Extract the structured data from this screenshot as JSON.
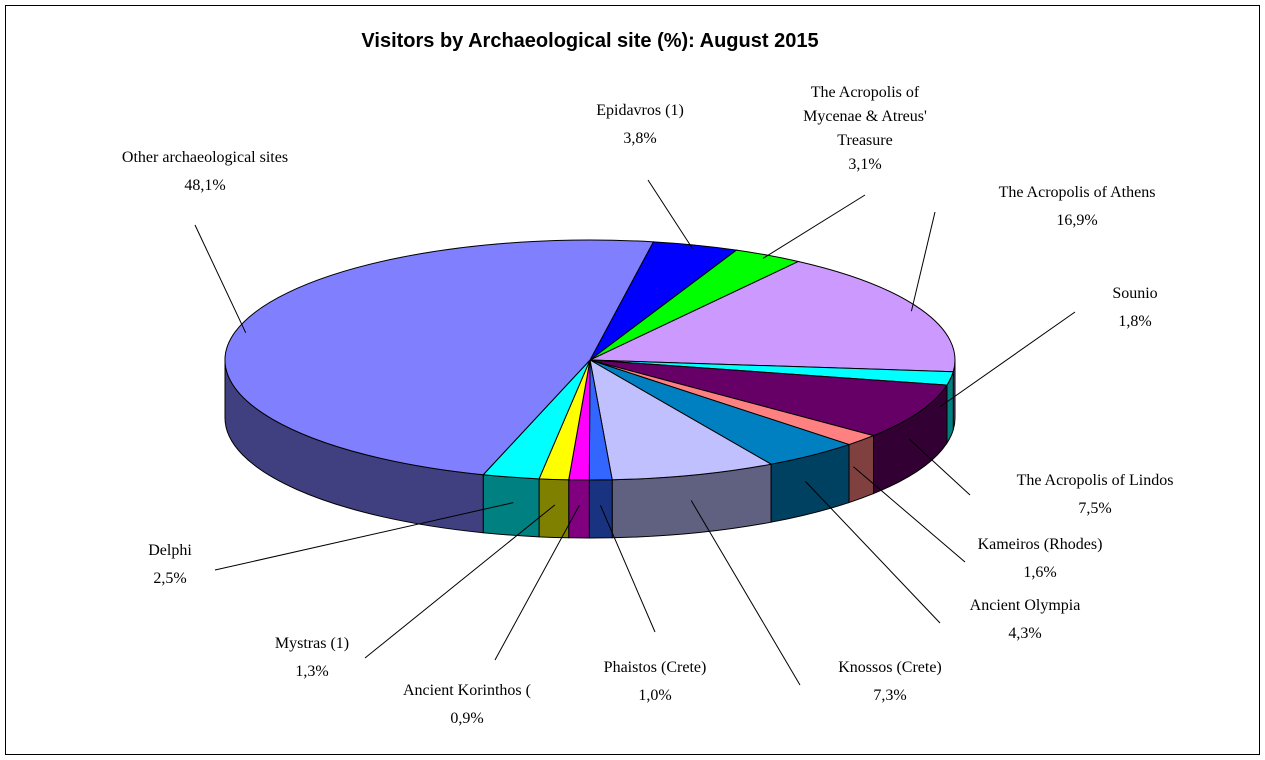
{
  "chart_data": {
    "type": "pie",
    "title": "Visitors by Archaeological site (%): August 2015",
    "categories": [
      "Epidavros (1)",
      "The Acropolis of Mycenae & Atreus' Treasure",
      "The Acropolis of Athens",
      "Sounio",
      "The Acropolis of Lindos",
      "Kameiros (Rhodes)",
      "Ancient Olympia",
      "Knossos (Crete)",
      "Phaistos (Crete)",
      "Ancient Korinthos (",
      "Mystras (1)",
      "Delphi",
      "Other archaeological sites"
    ],
    "values": [
      3.8,
      3.1,
      16.9,
      1.8,
      7.5,
      1.6,
      4.3,
      7.3,
      1.0,
      0.9,
      1.3,
      2.5,
      48.1
    ],
    "value_labels": [
      "3,8%",
      "3,1%",
      "16,9%",
      "1,8%",
      "7,5%",
      "1,6%",
      "4,3%",
      "7,3%",
      "1,0%",
      "0,9%",
      "1,3%",
      "2,5%",
      "48,1%"
    ],
    "colors": [
      "#0000ff",
      "#00ff00",
      "#cc99ff",
      "#00ffff",
      "#660066",
      "#ff8080",
      "#0080c0",
      "#c0c0ff",
      "#3366ff",
      "#ff00ff",
      "#ffff00",
      "#00ffff",
      "#8080ff"
    ]
  }
}
